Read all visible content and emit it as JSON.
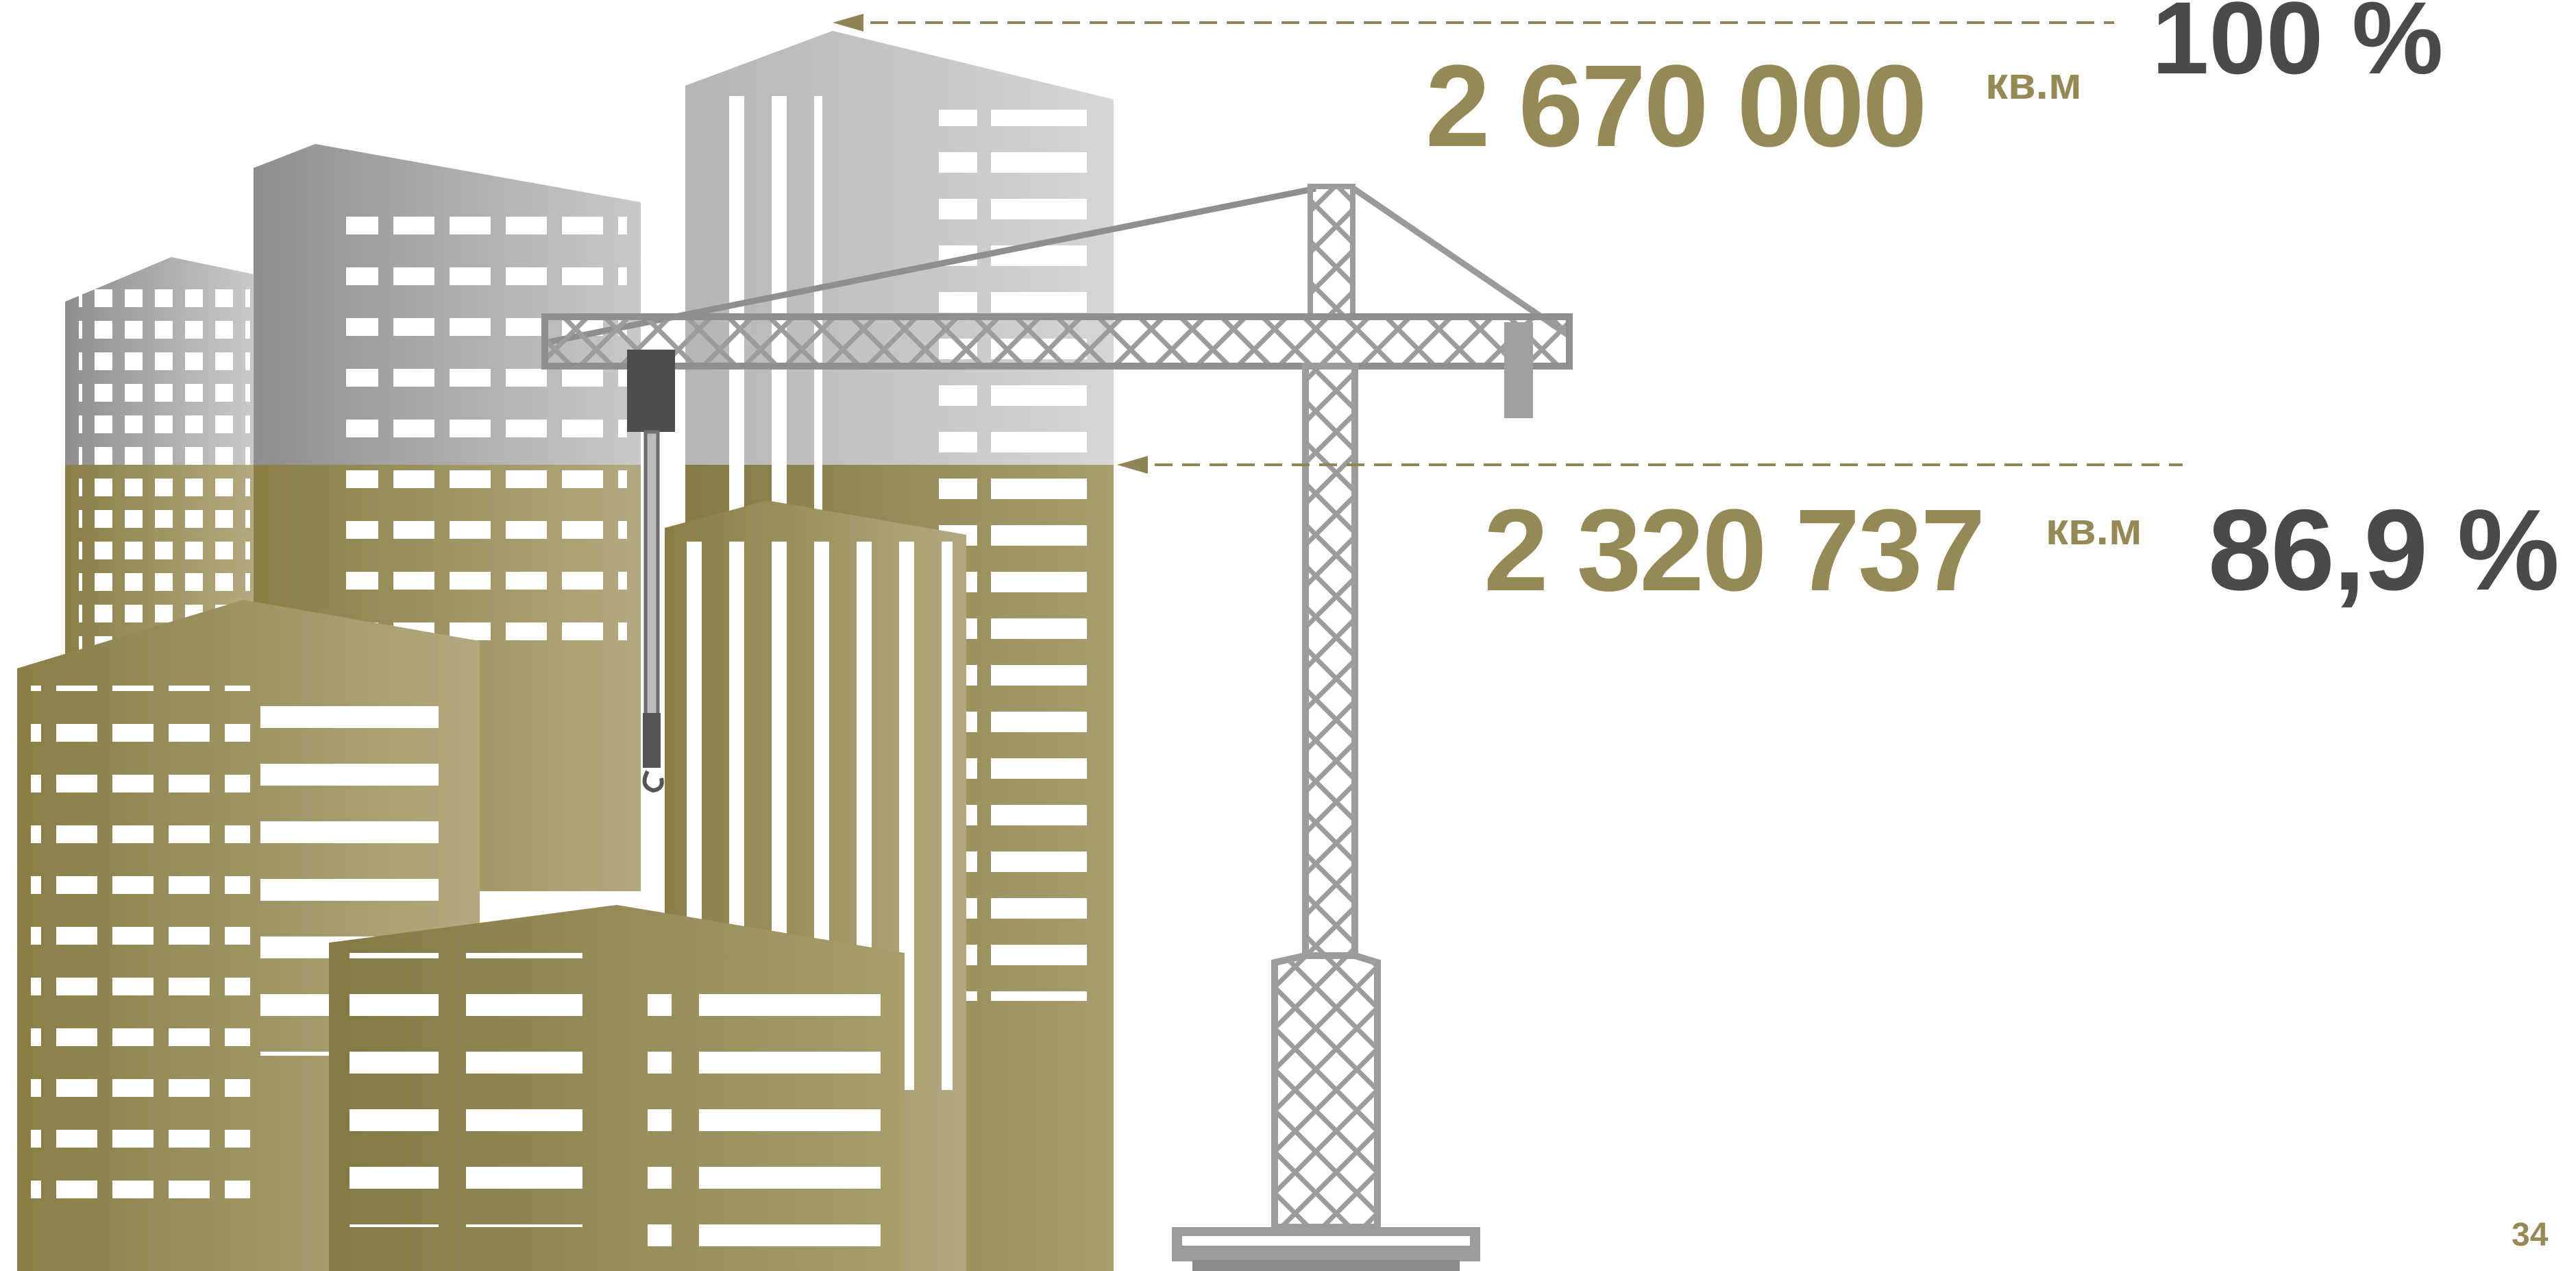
{
  "slide": {
    "total": {
      "value": "2 670 000",
      "unit": "кв.м",
      "percent": "100 %"
    },
    "built": {
      "value": "2 320 737",
      "unit": "кв.м",
      "percent": "86,9 %"
    },
    "page_number": "34"
  },
  "progress": {
    "fraction": 0.869
  },
  "colors": {
    "olive": "#958a55",
    "dark_text": "#4a4a4a",
    "grey_building": "#a8a8a8",
    "crane": "#9c9c9c"
  },
  "icons": {
    "illustration": "city-buildings-with-tower-crane"
  }
}
